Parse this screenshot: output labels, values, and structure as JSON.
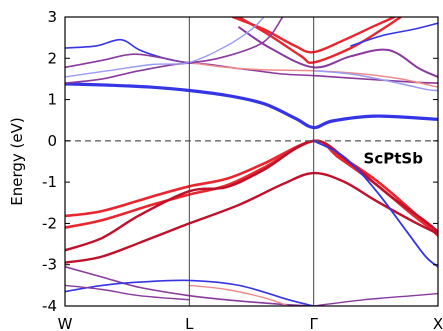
{
  "chart_data": {
    "type": "line",
    "title": "",
    "ylabel": "Energy (eV)",
    "xlabel": "",
    "ylim": [
      -4,
      3
    ],
    "yticks": [
      3,
      2,
      1,
      0,
      -1,
      -2,
      -3,
      -4
    ],
    "kpoints": [
      {
        "label": "W",
        "x": 0
      },
      {
        "label": "L",
        "x": 1
      },
      {
        "label": "Γ",
        "x": 2
      },
      {
        "label": "X",
        "x": 3
      }
    ],
    "fermi_level": 0,
    "annotation": "ScPtSb",
    "grid": false,
    "colors": {
      "red": "#e8262f",
      "darkred": "#c0102a",
      "blue": "#3535e6",
      "purple": "#8a3a9e",
      "lightred": "#f08a8a",
      "lightblue": "#9a9af2"
    },
    "series": [
      {
        "color": "red",
        "width": 2.6,
        "points": [
          [
            0,
            -1.82
          ],
          [
            0.3,
            -1.7
          ],
          [
            0.7,
            -1.35
          ],
          [
            1,
            -1.1
          ],
          [
            1.3,
            -0.92
          ],
          [
            1.6,
            -0.55
          ],
          [
            2,
            0
          ],
          [
            2.2,
            -0.35
          ],
          [
            2.5,
            -0.95
          ],
          [
            2.8,
            -1.72
          ],
          [
            3,
            -2.3
          ]
        ]
      },
      {
        "color": "red",
        "width": 2.6,
        "points": [
          [
            0,
            -2.1
          ],
          [
            0.3,
            -1.92
          ],
          [
            0.7,
            -1.55
          ],
          [
            1,
            -1.3
          ],
          [
            1.3,
            -1.08
          ],
          [
            1.6,
            -0.65
          ],
          [
            2,
            0
          ],
          [
            2.2,
            -0.4
          ],
          [
            2.5,
            -1.05
          ],
          [
            2.8,
            -1.8
          ],
          [
            3,
            -2.25
          ]
        ]
      },
      {
        "color": "darkred",
        "width": 2.4,
        "points": [
          [
            0,
            -2.65
          ],
          [
            0.3,
            -2.35
          ],
          [
            0.6,
            -1.8
          ],
          [
            1,
            -1.22
          ],
          [
            1.3,
            -1.12
          ],
          [
            1.6,
            -0.7
          ],
          [
            2,
            0
          ],
          [
            2.3,
            -0.55
          ],
          [
            2.6,
            -1.3
          ],
          [
            2.9,
            -1.95
          ],
          [
            3,
            -2.2
          ]
        ]
      },
      {
        "color": "darkred",
        "width": 2.4,
        "points": [
          [
            0,
            -2.95
          ],
          [
            0.3,
            -2.8
          ],
          [
            0.7,
            -2.35
          ],
          [
            1,
            -2.0
          ],
          [
            1.4,
            -1.55
          ],
          [
            1.75,
            -1.05
          ],
          [
            2,
            -0.78
          ],
          [
            2.25,
            -1.0
          ],
          [
            2.5,
            -1.45
          ],
          [
            2.8,
            -1.95
          ],
          [
            3,
            -2.25
          ]
        ]
      },
      {
        "color": "blue",
        "width": 3.2,
        "points": [
          [
            0,
            1.38
          ],
          [
            0.35,
            1.35
          ],
          [
            0.7,
            1.3
          ],
          [
            1,
            1.22
          ],
          [
            1.3,
            1.1
          ],
          [
            1.6,
            0.9
          ],
          [
            1.85,
            0.55
          ],
          [
            2,
            0.32
          ],
          [
            2.15,
            0.48
          ],
          [
            2.5,
            0.6
          ],
          [
            3,
            0.52
          ]
        ]
      },
      {
        "color": "purple",
        "width": 1.6,
        "points": [
          [
            0,
            1.4
          ],
          [
            0.3,
            1.5
          ],
          [
            0.6,
            1.7
          ],
          [
            1,
            1.88
          ],
          [
            1.4,
            1.75
          ],
          [
            1.75,
            1.62
          ],
          [
            2,
            1.58
          ],
          [
            2.4,
            1.5
          ],
          [
            2.8,
            1.42
          ],
          [
            3,
            1.4
          ]
        ]
      },
      {
        "color": "red",
        "width": 2.4,
        "points": [
          [
            1.35,
            3.0
          ],
          [
            1.6,
            2.7
          ],
          [
            1.85,
            2.3
          ],
          [
            2,
            2.15
          ],
          [
            2.25,
            2.45
          ],
          [
            2.5,
            2.8
          ],
          [
            2.65,
            3.0
          ]
        ]
      },
      {
        "color": "red",
        "width": 2.4,
        "points": [
          [
            1.4,
            3.0
          ],
          [
            1.65,
            2.55
          ],
          [
            1.9,
            2.05
          ],
          [
            2,
            1.9
          ],
          [
            2.3,
            2.25
          ],
          [
            2.55,
            2.7
          ],
          [
            2.7,
            3.0
          ]
        ]
      },
      {
        "color": "purple",
        "width": 2.0,
        "points": [
          [
            1.4,
            2.75
          ],
          [
            1.65,
            2.25
          ],
          [
            2,
            1.78
          ],
          [
            2.3,
            2.05
          ],
          [
            2.6,
            2.2
          ],
          [
            2.85,
            1.75
          ],
          [
            3,
            1.55
          ]
        ]
      },
      {
        "color": "lightred",
        "width": 1.5,
        "points": [
          [
            1,
            1.9
          ],
          [
            1.3,
            1.78
          ],
          [
            1.6,
            1.72
          ],
          [
            2,
            1.7
          ],
          [
            2.4,
            1.62
          ],
          [
            2.7,
            1.5
          ],
          [
            3,
            1.3
          ]
        ]
      },
      {
        "color": "lightblue",
        "width": 1.5,
        "points": [
          [
            2,
            1.7
          ],
          [
            2.3,
            1.62
          ],
          [
            2.6,
            1.45
          ],
          [
            2.9,
            1.25
          ],
          [
            3,
            1.22
          ]
        ]
      },
      {
        "color": "blue",
        "width": 1.6,
        "points": [
          [
            0,
            2.25
          ],
          [
            0.25,
            2.3
          ],
          [
            0.45,
            2.45
          ],
          [
            0.6,
            2.2
          ],
          [
            0.8,
            2.0
          ],
          [
            1,
            1.88
          ]
        ]
      },
      {
        "color": "purple",
        "width": 1.6,
        "points": [
          [
            0,
            1.78
          ],
          [
            0.3,
            1.95
          ],
          [
            0.55,
            2.1
          ],
          [
            0.8,
            2.0
          ],
          [
            1,
            1.9
          ],
          [
            1.3,
            2.05
          ],
          [
            1.6,
            2.4
          ],
          [
            1.75,
            3.0
          ]
        ]
      },
      {
        "color": "lightblue",
        "width": 1.4,
        "points": [
          [
            0,
            1.55
          ],
          [
            0.35,
            1.7
          ],
          [
            0.7,
            1.85
          ],
          [
            1,
            1.9
          ],
          [
            1.3,
            2.3
          ],
          [
            1.5,
            2.7
          ],
          [
            1.6,
            3.0
          ]
        ]
      },
      {
        "color": "blue",
        "width": 1.6,
        "points": [
          [
            2.3,
            2.3
          ],
          [
            2.55,
            2.55
          ],
          [
            2.8,
            2.7
          ],
          [
            3,
            2.85
          ]
        ]
      },
      {
        "color": "blue",
        "width": 1.8,
        "points": [
          [
            2,
            0
          ],
          [
            2.25,
            -0.4
          ],
          [
            2.5,
            -1.2
          ],
          [
            2.75,
            -2.2
          ],
          [
            2.9,
            -2.8
          ],
          [
            3,
            -3.05
          ]
        ]
      },
      {
        "color": "purple",
        "width": 1.6,
        "points": [
          [
            0,
            -3.05
          ],
          [
            0.3,
            -3.3
          ],
          [
            0.6,
            -3.55
          ],
          [
            1,
            -3.75
          ],
          [
            1.3,
            -3.85
          ],
          [
            1.7,
            -3.95
          ],
          [
            2,
            -4.0
          ]
        ]
      },
      {
        "color": "blue",
        "width": 1.6,
        "points": [
          [
            0,
            -3.65
          ],
          [
            0.3,
            -3.5
          ],
          [
            0.6,
            -3.42
          ],
          [
            1,
            -3.38
          ],
          [
            1.4,
            -3.5
          ],
          [
            1.8,
            -3.85
          ],
          [
            2,
            -4.0
          ]
        ]
      },
      {
        "color": "purple",
        "width": 1.4,
        "points": [
          [
            0,
            -3.5
          ],
          [
            0.3,
            -3.6
          ],
          [
            0.6,
            -3.75
          ],
          [
            1,
            -3.85
          ]
        ]
      },
      {
        "color": "lightred",
        "width": 1.4,
        "points": [
          [
            1,
            -3.5
          ],
          [
            1.3,
            -3.6
          ],
          [
            1.6,
            -3.8
          ],
          [
            1.8,
            -4.0
          ]
        ]
      },
      {
        "color": "purple",
        "width": 1.4,
        "points": [
          [
            2,
            -4.0
          ],
          [
            2.4,
            -3.85
          ],
          [
            2.8,
            -3.75
          ],
          [
            3,
            -3.7
          ]
        ]
      }
    ]
  }
}
